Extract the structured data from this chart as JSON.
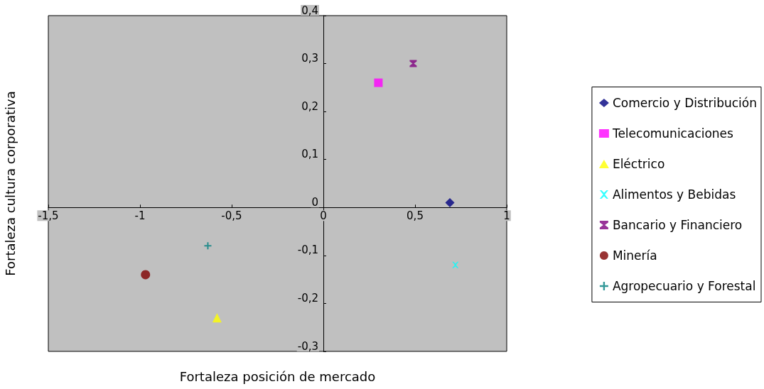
{
  "chart_data": {
    "type": "scatter",
    "xlabel": "Fortaleza posición de mercado",
    "ylabel": "Fortaleza cultura corporativa",
    "xlim": [
      -1.5,
      1
    ],
    "xticks": [
      {
        "value": -1.5,
        "label": "-1,5"
      },
      -1,
      {
        "value": -0.5,
        "label": "-0,5"
      },
      0,
      {
        "value": 0.5,
        "label": "0,5"
      },
      1
    ],
    "ylim": [
      -0.3,
      0.4
    ],
    "yticks": [
      {
        "value": -0.3,
        "label": "-0,3"
      },
      {
        "value": -0.2,
        "label": "-0,2"
      },
      {
        "value": -0.1,
        "label": "-0,1"
      },
      0,
      {
        "value": 0.1,
        "label": "0,1"
      },
      {
        "value": 0.2,
        "label": "0,2"
      },
      {
        "value": 0.3,
        "label": "0,3"
      },
      {
        "value": 0.4,
        "label": "0,4"
      }
    ],
    "grid": false,
    "legend": "right",
    "series": [
      {
        "name": "Comercio y Distribución",
        "color": "#000080",
        "marker": "diamond",
        "x": [
          0.69
        ],
        "values": [
          0.01
        ]
      },
      {
        "name": "Telecomunicaciones",
        "color": "#ff00ff",
        "marker": "square",
        "x": [
          0.3
        ],
        "values": [
          0.26
        ]
      },
      {
        "name": "Eléctrico",
        "color": "#ffff00",
        "marker": "triangle",
        "x": [
          -0.58
        ],
        "values": [
          -0.23
        ]
      },
      {
        "name": "Alimentos y Bebidas",
        "color": "#00ffff",
        "marker": "cross",
        "x": [
          0.72
        ],
        "values": [
          -0.12
        ]
      },
      {
        "name": "Bancario y Financiero",
        "color": "#800080",
        "marker": "star",
        "x": [
          0.49
        ],
        "values": [
          0.3
        ]
      },
      {
        "name": "Minería",
        "color": "#800000",
        "marker": "circle",
        "x": [
          -0.97
        ],
        "values": [
          -0.14
        ]
      },
      {
        "name": "Agropecuario y Forestal",
        "color": "#008080",
        "marker": "plus",
        "x": [
          -0.63
        ],
        "values": [
          -0.08
        ]
      }
    ]
  }
}
